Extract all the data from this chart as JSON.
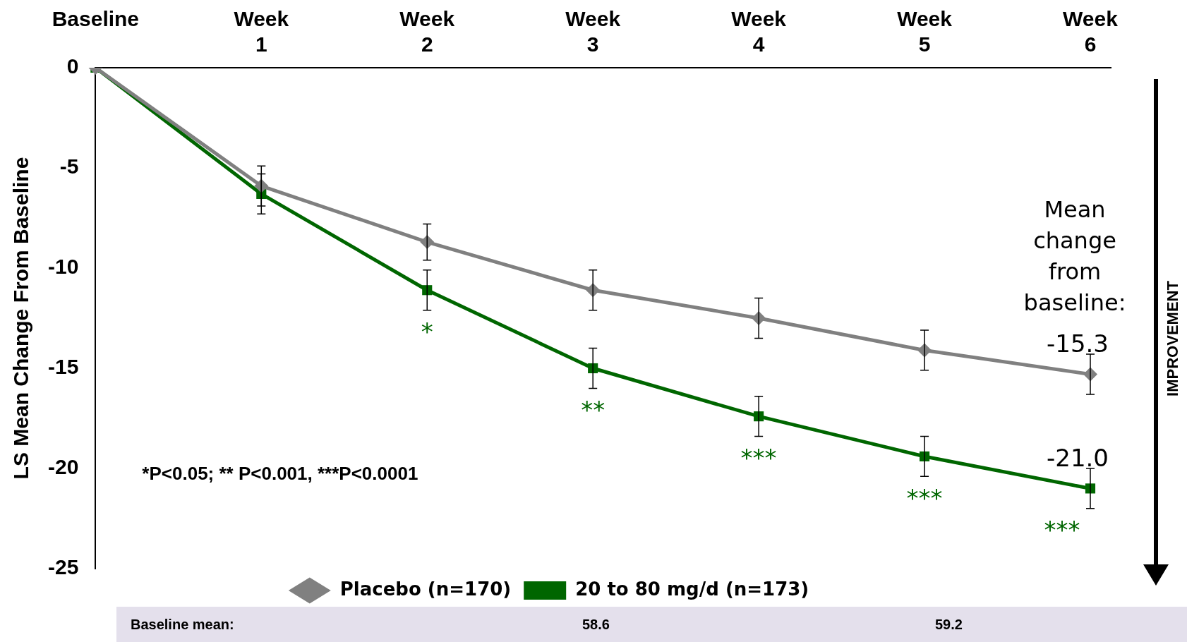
{
  "chart_data": {
    "type": "line",
    "ylabel": "LS Mean Change From Baseline",
    "categories": [
      "Baseline",
      "Week 1",
      "Week 2",
      "Week 3",
      "Week 4",
      "Week 5",
      "Week 6"
    ],
    "ylim": [
      -25,
      0
    ],
    "yticks": [
      0,
      -5,
      -10,
      -15,
      -20,
      -25
    ],
    "grid": false,
    "legend": "bottom",
    "line_style": "solid",
    "series": [
      {
        "name": "Placebo (n=170)",
        "color": "#808080",
        "marker": "diamond",
        "values": [
          0,
          -5.9,
          -8.7,
          -11.1,
          -12.5,
          -14.1,
          -15.3
        ],
        "errors": [
          null,
          1.0,
          0.9,
          1.0,
          1.0,
          1.0,
          1.0
        ]
      },
      {
        "name": "20 to 80 mg/d (n=173)",
        "color": "#006600",
        "marker": "square",
        "values": [
          0,
          -6.3,
          -11.1,
          -15.0,
          -17.4,
          -19.4,
          -21.0
        ],
        "errors": [
          null,
          1.0,
          1.0,
          1.0,
          1.0,
          1.0,
          1.0
        ]
      }
    ],
    "annotations": [
      "*P<0.05; ** P<0.001, ***P<0.0001",
      "Mean change from baseline:",
      "IMPROVEMENT",
      "Baseline mean:",
      "58.6",
      "59.2",
      {
        "text": "-15.3",
        "x": "Week 6",
        "y": -15.3
      },
      {
        "text": "-21.0",
        "x": "Week 6",
        "y": -21.0
      },
      {
        "text": "*",
        "x": "Week 2",
        "y": -11.1
      },
      {
        "text": "**",
        "x": "Week 3",
        "y": -15.0
      },
      {
        "text": "***",
        "x": "Week 4",
        "y": -17.4
      },
      {
        "text": "***",
        "x": "Week 5",
        "y": -19.4
      },
      {
        "text": "***",
        "x": "Week 6",
        "y": -21.0
      }
    ]
  }
}
